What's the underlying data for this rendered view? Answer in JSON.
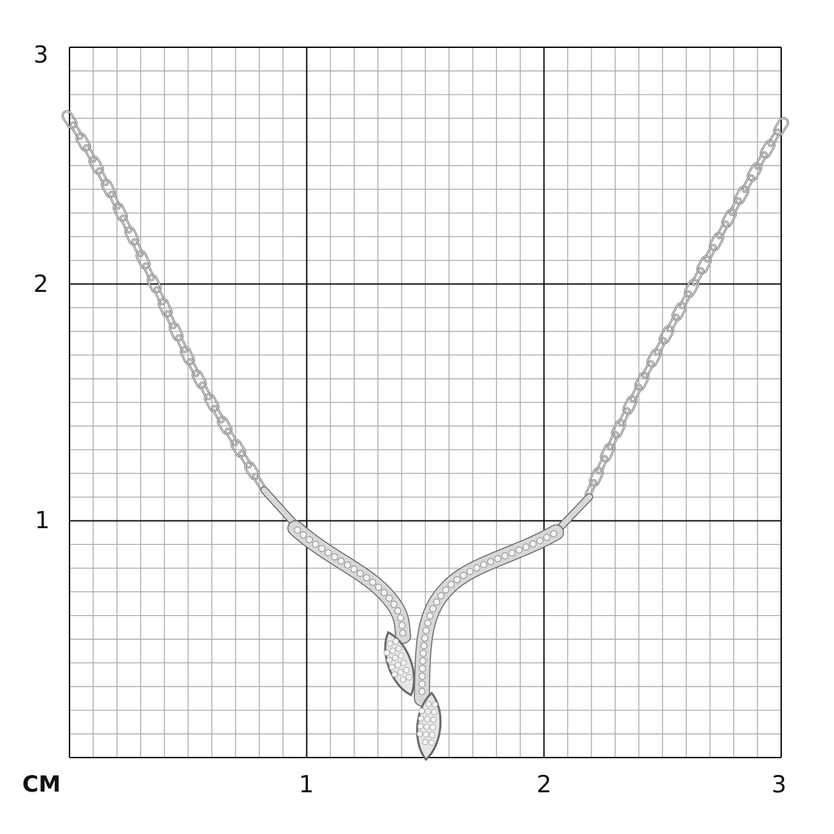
{
  "scale": {
    "unit": "CM",
    "y_labels": [
      "3",
      "2",
      "1"
    ],
    "x_labels": [
      "1",
      "2",
      "3"
    ],
    "range_cm": [
      0,
      3
    ],
    "minor_divisions_per_cm": 10
  },
  "colors": {
    "major_grid": "#111111",
    "minor_grid": "#a8a8a8",
    "metal": "#d8d8d8",
    "metal_edge": "#6a6a6a"
  },
  "subject": "necklace-photo"
}
